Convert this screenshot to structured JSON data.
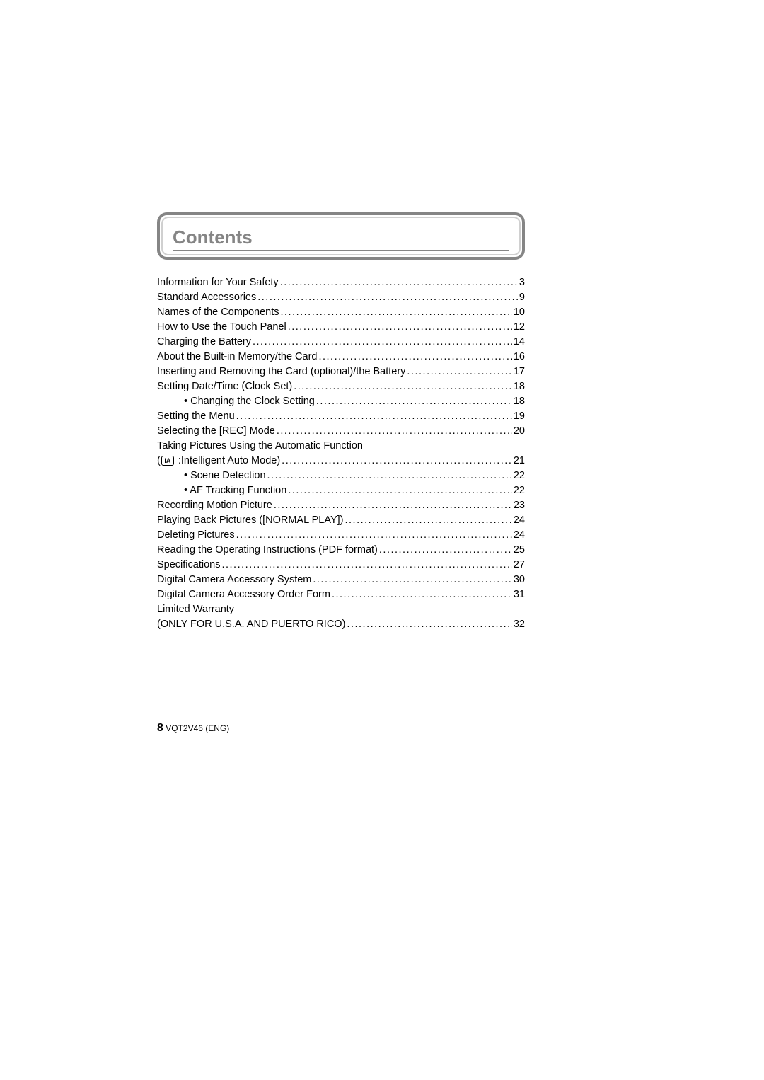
{
  "header": {
    "title": "Contents"
  },
  "toc": [
    {
      "label": "Information for Your Safety",
      "page": "3",
      "indent": 0
    },
    {
      "label": "Standard Accessories",
      "page": "9",
      "indent": 0
    },
    {
      "label": "Names of the Components",
      "page": "10",
      "indent": 0
    },
    {
      "label": "How to Use the Touch Panel",
      "page": "12",
      "indent": 0
    },
    {
      "label": "Charging the Battery",
      "page": "14",
      "indent": 0
    },
    {
      "label": "About the Built-in Memory/the Card",
      "page": "16",
      "indent": 0
    },
    {
      "label": "Inserting and Removing the Card (optional)/the Battery",
      "page": "17",
      "indent": 0
    },
    {
      "label": "Setting Date/Time (Clock Set)",
      "page": "18",
      "indent": 0
    },
    {
      "label": "• Changing the Clock Setting",
      "page": "18",
      "indent": 1
    },
    {
      "label": "Setting the Menu",
      "page": "19",
      "indent": 0
    },
    {
      "label": "Selecting the [REC] Mode",
      "page": "20",
      "indent": 0
    },
    {
      "label": "Taking Pictures Using the Automatic Function",
      "noline": true,
      "indent": 0
    },
    {
      "prefix": "(",
      "icon": "iA",
      "label": " :Intelligent Auto Mode)",
      "page": "21",
      "indent": 0
    },
    {
      "label": "• Scene Detection",
      "page": "22",
      "indent": 1
    },
    {
      "label": "• AF Tracking Function",
      "page": "22",
      "indent": 1
    },
    {
      "label": "Recording Motion Picture",
      "page": "23",
      "indent": 0
    },
    {
      "label": "Playing Back Pictures ([NORMAL PLAY])",
      "page": "24",
      "indent": 0
    },
    {
      "label": "Deleting Pictures",
      "page": "24",
      "indent": 0
    },
    {
      "label": "Reading the Operating Instructions (PDF format)",
      "page": "25",
      "indent": 0
    },
    {
      "label": "Specifications",
      "page": "27",
      "indent": 0
    },
    {
      "label": "Digital Camera Accessory System",
      "page": "30",
      "indent": 0
    },
    {
      "label": "Digital Camera Accessory Order Form",
      "page": "31",
      "indent": 0
    },
    {
      "label": "Limited Warranty",
      "noline": true,
      "indent": 0
    },
    {
      "label": "(ONLY FOR U.S.A. AND PUERTO RICO)",
      "page": "32",
      "indent": 0
    }
  ],
  "footer": {
    "page_number": "8",
    "document_code": "VQT2V46 (ENG)"
  }
}
